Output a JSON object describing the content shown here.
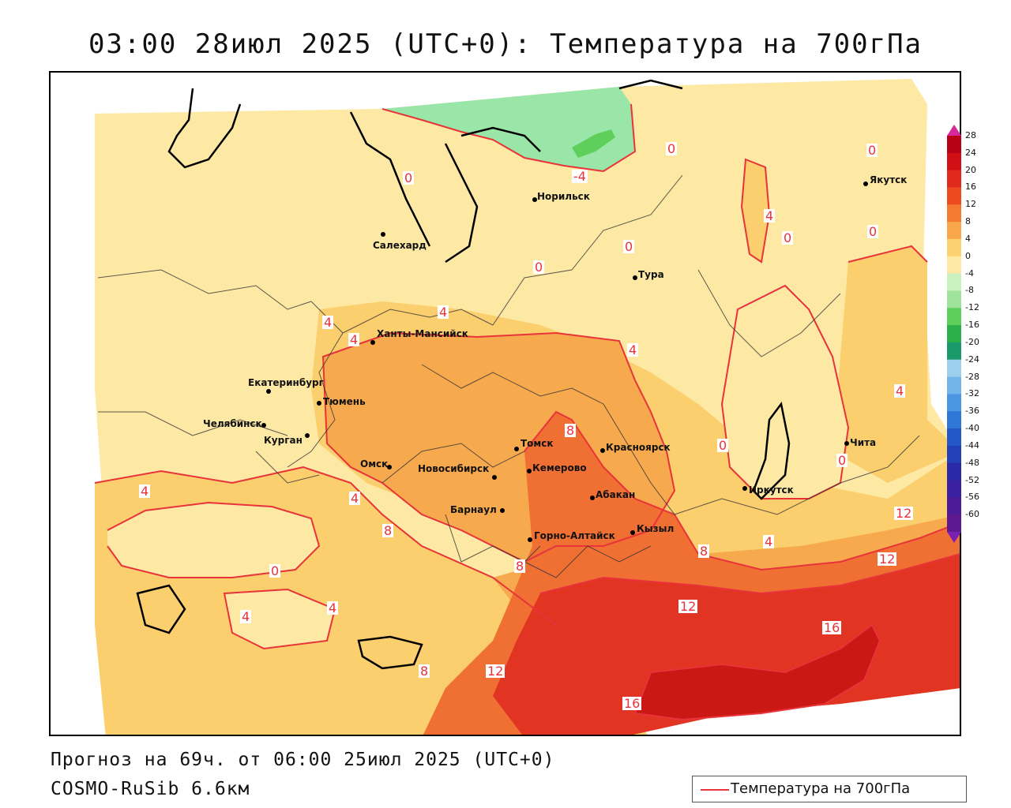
{
  "title": "03:00 28июл 2025 (UTC+0): Температура на 700гПа",
  "footer": {
    "forecast": "Прогноз на 69ч. от 06:00 25июл 2025 (UTC+0)",
    "model": "COSMO-RuSib 6.6км"
  },
  "legend": {
    "label": "Температура на 700гПа",
    "line_color": "#e8333a"
  },
  "colors": {
    "lt_minus4": "#c8f5c8",
    "minus4_0": "#99e6a8",
    "zero_4": "#fde8a4",
    "four_8": "#fbcf6e",
    "eight_12": "#f7a94e",
    "twelve_16": "#f06f33",
    "sixteen_20": "#e23422",
    "twenty_24": "#d41a17",
    "contour": "#e8333a"
  },
  "scale": {
    "ticks": [
      "28",
      "24",
      "20",
      "16",
      "12",
      "8",
      "4",
      "0",
      "-4",
      "-8",
      "-12",
      "-16",
      "-20",
      "-24",
      "-28",
      "-32",
      "-36",
      "-40",
      "-44",
      "-48",
      "-52",
      "-56",
      "-60"
    ],
    "colors": [
      "#b80015",
      "#d11016",
      "#e02a1c",
      "#ee4a22",
      "#f37a30",
      "#f8a84a",
      "#fdd070",
      "#fde8a4",
      "#c9f2c0",
      "#9fe29a",
      "#5fcf5c",
      "#2cb04a",
      "#1a9a6a",
      "#9ecfee",
      "#72b5ea",
      "#4b97e2",
      "#2f78d8",
      "#2458c8",
      "#2240b8",
      "#2a2aa8",
      "#3a1fa0",
      "#4b1b98",
      "#5e1890"
    ]
  },
  "cities": [
    {
      "name": "Норильск"
    },
    {
      "name": "Якутск"
    },
    {
      "name": "Салехард"
    },
    {
      "name": "Тура"
    },
    {
      "name": "Ханты-Мансийск"
    },
    {
      "name": "Екатеринбург"
    },
    {
      "name": "Тюмень"
    },
    {
      "name": "Челябинск"
    },
    {
      "name": "Курган"
    },
    {
      "name": "Омск"
    },
    {
      "name": "Новосибирск"
    },
    {
      "name": "Томск"
    },
    {
      "name": "Кемерово"
    },
    {
      "name": "Красноярск"
    },
    {
      "name": "Абакан"
    },
    {
      "name": "Барнаул"
    },
    {
      "name": "Горно-Алтайск"
    },
    {
      "name": "Кызыл"
    },
    {
      "name": "Иркутск"
    },
    {
      "name": "Чита"
    }
  ],
  "contour_labels": [
    "0",
    "-4",
    "0",
    "0",
    "4",
    "0",
    "0",
    "0",
    "4",
    "4",
    "4",
    "4",
    "4",
    "8",
    "0",
    "0",
    "0",
    "4",
    "4",
    "8",
    "0",
    "4",
    "4",
    "8",
    "8",
    "12",
    "12",
    "16",
    "4",
    "8",
    "12",
    "16",
    "12"
  ]
}
